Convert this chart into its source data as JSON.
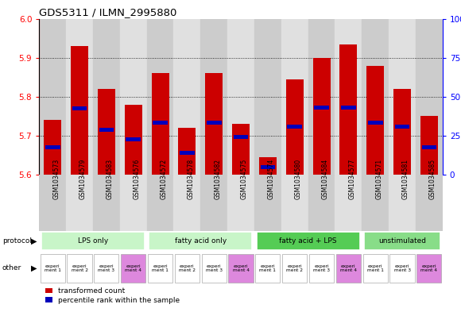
{
  "title": "GDS5311 / ILMN_2995880",
  "samples": [
    "GSM1034573",
    "GSM1034579",
    "GSM1034583",
    "GSM1034576",
    "GSM1034572",
    "GSM1034578",
    "GSM1034582",
    "GSM1034575",
    "GSM1034574",
    "GSM1034580",
    "GSM1034584",
    "GSM1034577",
    "GSM1034571",
    "GSM1034581",
    "GSM1034585"
  ],
  "transformed_count": [
    5.74,
    5.93,
    5.82,
    5.78,
    5.86,
    5.72,
    5.86,
    5.73,
    5.645,
    5.845,
    5.9,
    5.935,
    5.88,
    5.82,
    5.75
  ],
  "blue_marker_value": [
    5.665,
    5.765,
    5.71,
    5.685,
    5.728,
    5.651,
    5.728,
    5.692,
    5.615,
    5.718,
    5.768,
    5.768,
    5.728,
    5.718,
    5.665
  ],
  "ylim": [
    5.6,
    6.0
  ],
  "yticks_left": [
    5.6,
    5.7,
    5.8,
    5.9,
    6.0
  ],
  "yticks_right": [
    0,
    25,
    50,
    75,
    100
  ],
  "protocol_groups": [
    {
      "label": "LPS only",
      "start": 0,
      "end": 4,
      "color": "#c8f5c8"
    },
    {
      "label": "fatty acid only",
      "start": 4,
      "end": 8,
      "color": "#c8f5c8"
    },
    {
      "label": "fatty acid + LPS",
      "start": 8,
      "end": 12,
      "color": "#55cc55"
    },
    {
      "label": "unstimulated",
      "start": 12,
      "end": 15,
      "color": "#88dd88"
    }
  ],
  "experiment_labels": [
    "experi\nment 1",
    "experi\nment 2",
    "experi\nment 3",
    "experi\nment 4",
    "experi\nment 1",
    "experi\nment 2",
    "experi\nment 3",
    "experi\nment 4",
    "experi\nment 1",
    "experi\nment 2",
    "experi\nment 3",
    "experi\nment 4",
    "experi\nment 1",
    "experi\nment 3",
    "experi\nment 4"
  ],
  "experiment_colors": [
    "#ffffff",
    "#ffffff",
    "#ffffff",
    "#dd88dd",
    "#ffffff",
    "#ffffff",
    "#ffffff",
    "#dd88dd",
    "#ffffff",
    "#ffffff",
    "#ffffff",
    "#dd88dd",
    "#ffffff",
    "#ffffff",
    "#dd88dd"
  ],
  "sample_bg_even": "#cccccc",
  "sample_bg_odd": "#e0e0e0",
  "bar_color": "#cc0000",
  "blue_color": "#0000bb",
  "bar_bottom": 5.6,
  "legend_items": [
    "transformed count",
    "percentile rank within the sample"
  ],
  "legend_colors": [
    "#cc0000",
    "#0000bb"
  ]
}
